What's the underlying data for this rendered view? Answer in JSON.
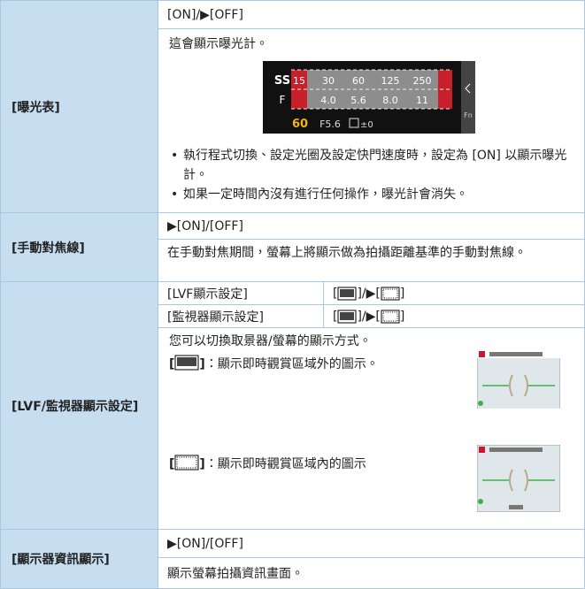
{
  "rows": [
    {
      "label": "[曝光表]",
      "setting": "[ON]/▶[OFF]",
      "text": "這會顯示曝光計。",
      "meter": {
        "ss_label": "SS",
        "ss_values": [
          "15",
          "30",
          "60",
          "125",
          "250"
        ],
        "f_label": "F",
        "f_values": [
          "4.0",
          "5.6",
          "8.0",
          "11"
        ],
        "shutter": "60",
        "aperture": "F5.6",
        "exposure": "±0",
        "fn": "Fn"
      },
      "bullets": [
        "執行程式切換、設定光圈及設定快門速度時，設定為 [ON] 以顯示曝光計。",
        "如果一定時間內沒有進行任何操作，曝光計會消失。"
      ]
    },
    {
      "label": "[手動對焦線]",
      "setting": "▶[ON]/[OFF]",
      "text": "在手動對焦期間，螢幕上將顯示做為拍攝距離基準的手動對焦線。"
    },
    {
      "label": "[LVF/監視器顯示設定]",
      "subrows": [
        {
          "name": "[LVF顯示設定]",
          "open": "[",
          "middle": "]/▶[",
          "close": "]"
        },
        {
          "name": "[監視器顯示設定]",
          "open": "[",
          "middle": "]/▶[",
          "close": "]"
        }
      ],
      "text": "您可以切換取景器/螢幕的顯示方式。",
      "options": [
        {
          "open": "[",
          "close": "]",
          "desc": "：顯示即時觀賞區域外的圖示。"
        },
        {
          "open": "[",
          "close": "]",
          "desc": "：顯示即時觀賞區域內的圖示"
        }
      ]
    },
    {
      "label": "[顯示器資訊顯示]",
      "setting": "▶[ON]/[OFF]",
      "text": "顯示螢幕拍攝資訊畫面。"
    }
  ]
}
